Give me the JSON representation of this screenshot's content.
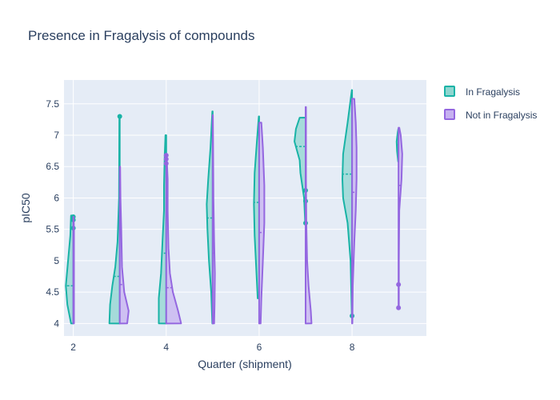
{
  "chart_data": {
    "type": "violin",
    "title": "Presence in Fragalysis of compounds",
    "xlabel": "Quarter (shipment)",
    "ylabel": "pIC50",
    "xlim": [
      1.8,
      9.6
    ],
    "ylim": [
      3.8,
      7.88
    ],
    "xticks": [
      2,
      4,
      6,
      8
    ],
    "yticks": [
      4,
      4.5,
      5,
      5.5,
      6,
      6.5,
      7,
      7.5
    ],
    "grid": true,
    "legend_position": "top-right",
    "series": [
      {
        "name": "In Fragalysis",
        "side": "negative",
        "color": "#19b3a6",
        "fill": "#8fd6d0",
        "violins": [
          {
            "x": 2,
            "min": 4.0,
            "max": 5.72,
            "mean": 4.6,
            "profile": [
              [
                4.0,
                0.03
              ],
              [
                4.3,
                0.08
              ],
              [
                4.6,
                0.1
              ],
              [
                5.0,
                0.07
              ],
              [
                5.4,
                0.04
              ],
              [
                5.72,
                0.03
              ]
            ],
            "points": [
              5.52,
              5.65,
              5.7
            ]
          },
          {
            "x": 3,
            "min": 4.0,
            "max": 7.3,
            "mean": 4.75,
            "profile": [
              [
                4.0,
                0.14
              ],
              [
                4.3,
                0.13
              ],
              [
                4.6,
                0.1
              ],
              [
                4.9,
                0.06
              ],
              [
                5.3,
                0.03
              ],
              [
                6.0,
                0.01
              ],
              [
                7.3,
                0.005
              ]
            ],
            "points": [
              7.3
            ]
          },
          {
            "x": 4,
            "min": 4.0,
            "max": 7.0,
            "mean": 5.12,
            "profile": [
              [
                4.0,
                0.1
              ],
              [
                4.4,
                0.1
              ],
              [
                4.8,
                0.07
              ],
              [
                5.3,
                0.05
              ],
              [
                5.8,
                0.03
              ],
              [
                6.2,
                0.03
              ],
              [
                6.7,
                0.02
              ],
              [
                7.0,
                0.01
              ]
            ],
            "points": []
          },
          {
            "x": 5,
            "min": 4.0,
            "max": 7.38,
            "mean": 5.68,
            "profile": [
              [
                4.0,
                0.005
              ],
              [
                4.5,
                0.02
              ],
              [
                5.0,
                0.05
              ],
              [
                5.5,
                0.07
              ],
              [
                5.9,
                0.08
              ],
              [
                6.3,
                0.06
              ],
              [
                6.8,
                0.03
              ],
              [
                7.38,
                0.005
              ]
            ],
            "points": []
          },
          {
            "x": 6,
            "min": 4.4,
            "max": 7.3,
            "mean": 5.93,
            "profile": [
              [
                4.4,
                0.02
              ],
              [
                4.9,
                0.04
              ],
              [
                5.4,
                0.06
              ],
              [
                5.9,
                0.07
              ],
              [
                6.4,
                0.06
              ],
              [
                6.9,
                0.03
              ],
              [
                7.3,
                0.005
              ]
            ],
            "points": []
          },
          {
            "x": 7,
            "min": 5.6,
            "max": 7.28,
            "mean": 6.82,
            "profile": [
              [
                5.6,
                0.005
              ],
              [
                6.0,
                0.02
              ],
              [
                6.4,
                0.07
              ],
              [
                6.6,
                0.08
              ],
              [
                6.9,
                0.15
              ],
              [
                7.1,
                0.13
              ],
              [
                7.28,
                0.08
              ]
            ],
            "points": [
              5.6,
              5.95,
              6.12
            ]
          },
          {
            "x": 8,
            "min": 4.1,
            "max": 7.72,
            "mean": 6.38,
            "profile": [
              [
                4.1,
                0.003
              ],
              [
                5.0,
                0.02
              ],
              [
                5.6,
                0.06
              ],
              [
                6.0,
                0.12
              ],
              [
                6.3,
                0.13
              ],
              [
                6.7,
                0.12
              ],
              [
                7.2,
                0.06
              ],
              [
                7.72,
                0.003
              ]
            ],
            "points": [
              4.12
            ]
          },
          {
            "x": 9,
            "min": 6.58,
            "max": 7.1,
            "mean": 6.85,
            "profile": [
              [
                6.58,
                0.005
              ],
              [
                6.75,
                0.02
              ],
              [
                6.9,
                0.025
              ],
              [
                7.05,
                0.01
              ],
              [
                7.1,
                0.003
              ]
            ],
            "points": []
          }
        ]
      },
      {
        "name": "Not in Fragalysis",
        "side": "positive",
        "color": "#9467e0",
        "fill": "#c6b1f0",
        "violins": [
          {
            "x": 2,
            "min": 4.0,
            "max": 5.7,
            "mean": 4.6,
            "profile": [
              [
                4.0,
                0.01
              ],
              [
                4.5,
                0.01
              ],
              [
                5.0,
                0.01
              ],
              [
                5.5,
                0.01
              ],
              [
                5.7,
                0.005
              ]
            ],
            "points": []
          },
          {
            "x": 3,
            "min": 4.0,
            "max": 6.5,
            "mean": 4.62,
            "profile": [
              [
                4.0,
                0.1
              ],
              [
                4.2,
                0.12
              ],
              [
                4.5,
                0.06
              ],
              [
                4.9,
                0.03
              ],
              [
                5.5,
                0.02
              ],
              [
                6.0,
                0.01
              ],
              [
                6.5,
                0.005
              ]
            ],
            "points": []
          },
          {
            "x": 4,
            "min": 4.0,
            "max": 6.7,
            "mean": 4.57,
            "profile": [
              [
                4.0,
                0.2
              ],
              [
                4.2,
                0.16
              ],
              [
                4.5,
                0.09
              ],
              [
                4.8,
                0.05
              ],
              [
                5.2,
                0.03
              ],
              [
                5.8,
                0.02
              ],
              [
                6.3,
                0.02
              ],
              [
                6.7,
                0.005
              ]
            ],
            "points": [
              6.55,
              6.62,
              6.68
            ]
          },
          {
            "x": 5,
            "min": 4.0,
            "max": 7.32,
            "mean": 5.12,
            "profile": [
              [
                4.0,
                0.02
              ],
              [
                4.3,
                0.025
              ],
              [
                4.8,
                0.03
              ],
              [
                5.3,
                0.02
              ],
              [
                6.0,
                0.01
              ],
              [
                7.0,
                0.005
              ],
              [
                7.32,
                0.003
              ]
            ],
            "points": []
          },
          {
            "x": 6,
            "min": 4.0,
            "max": 7.2,
            "mean": 5.45,
            "profile": [
              [
                4.0,
                0.02
              ],
              [
                4.4,
                0.03
              ],
              [
                5.0,
                0.05
              ],
              [
                5.6,
                0.07
              ],
              [
                6.2,
                0.07
              ],
              [
                6.8,
                0.05
              ],
              [
                7.2,
                0.03
              ]
            ],
            "points": []
          },
          {
            "x": 7,
            "min": 4.0,
            "max": 7.45,
            "mean": 5.05,
            "profile": [
              [
                4.0,
                0.08
              ],
              [
                4.2,
                0.07
              ],
              [
                4.6,
                0.04
              ],
              [
                5.0,
                0.02
              ],
              [
                5.6,
                0.01
              ],
              [
                6.3,
                0.005
              ],
              [
                7.45,
                0.005
              ]
            ],
            "points": []
          },
          {
            "x": 8,
            "min": 4.0,
            "max": 7.58,
            "mean": 6.09,
            "profile": [
              [
                4.0,
                0.005
              ],
              [
                4.6,
                0.01
              ],
              [
                5.3,
                0.03
              ],
              [
                5.8,
                0.05
              ],
              [
                6.3,
                0.06
              ],
              [
                6.8,
                0.06
              ],
              [
                7.2,
                0.05
              ],
              [
                7.58,
                0.03
              ]
            ],
            "points": []
          },
          {
            "x": 9,
            "min": 4.25,
            "max": 7.12,
            "mean": 6.2,
            "profile": [
              [
                4.25,
                0.005
              ],
              [
                5.0,
                0.005
              ],
              [
                5.8,
                0.01
              ],
              [
                6.3,
                0.04
              ],
              [
                6.7,
                0.05
              ],
              [
                7.0,
                0.03
              ],
              [
                7.12,
                0.01
              ]
            ],
            "points": [
              4.25,
              4.62
            ]
          }
        ]
      }
    ]
  }
}
